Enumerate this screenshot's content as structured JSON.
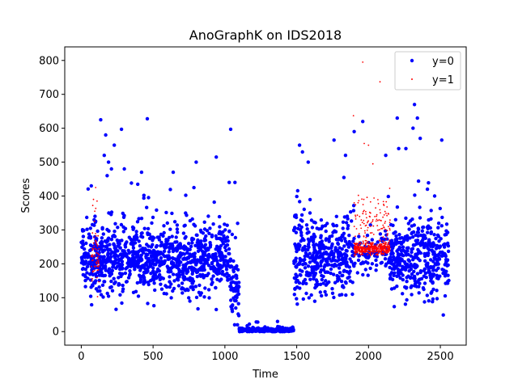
{
  "chart_data": {
    "type": "scatter",
    "title": "AnoGraphK on IDS2018",
    "xlabel": "Time",
    "ylabel": "Scores",
    "xlim": [
      -115,
      2680
    ],
    "ylim": [
      -40,
      840
    ],
    "xticks": [
      0,
      500,
      1000,
      1500,
      2000,
      2500
    ],
    "yticks": [
      0,
      100,
      200,
      300,
      400,
      500,
      600,
      700,
      800
    ],
    "legend_position": "top-right",
    "grid": false,
    "series": [
      {
        "name": "y=0",
        "color": "#0000ff",
        "marker": "large-dot",
        "segments": [
          {
            "x_start": 0,
            "x_end": 1040,
            "count": 1040,
            "median": 215,
            "spread": 70,
            "min": 50,
            "max": 450
          },
          {
            "x_start": 1040,
            "x_end": 1100,
            "count": 60,
            "median": 120,
            "spread": 70,
            "min": 20,
            "max": 350
          },
          {
            "x_start": 1100,
            "x_end": 1480,
            "count": 300,
            "median": 5,
            "spread": 4,
            "min": 0,
            "max": 30
          },
          {
            "x_start": 1480,
            "x_end": 1900,
            "count": 420,
            "median": 220,
            "spread": 80,
            "min": 50,
            "max": 480
          },
          {
            "x_start": 1900,
            "x_end": 2150,
            "count": 80,
            "median": 230,
            "spread": 40,
            "min": 100,
            "max": 420
          },
          {
            "x_start": 2150,
            "x_end": 2560,
            "count": 410,
            "median": 220,
            "spread": 80,
            "min": 45,
            "max": 460
          }
        ],
        "outliers": [
          {
            "x": 70,
            "y": 430
          },
          {
            "x": 135,
            "y": 625
          },
          {
            "x": 160,
            "y": 520
          },
          {
            "x": 170,
            "y": 580
          },
          {
            "x": 180,
            "y": 460
          },
          {
            "x": 190,
            "y": 500
          },
          {
            "x": 210,
            "y": 480
          },
          {
            "x": 230,
            "y": 550
          },
          {
            "x": 280,
            "y": 597
          },
          {
            "x": 300,
            "y": 480
          },
          {
            "x": 420,
            "y": 470
          },
          {
            "x": 460,
            "y": 628
          },
          {
            "x": 640,
            "y": 470
          },
          {
            "x": 800,
            "y": 500
          },
          {
            "x": 940,
            "y": 515
          },
          {
            "x": 1040,
            "y": 597
          },
          {
            "x": 1030,
            "y": 440
          },
          {
            "x": 1070,
            "y": 440
          },
          {
            "x": 1520,
            "y": 550
          },
          {
            "x": 1540,
            "y": 530
          },
          {
            "x": 1580,
            "y": 500
          },
          {
            "x": 1760,
            "y": 565
          },
          {
            "x": 1840,
            "y": 520
          },
          {
            "x": 1900,
            "y": 590
          },
          {
            "x": 1960,
            "y": 620
          },
          {
            "x": 2120,
            "y": 520
          },
          {
            "x": 2200,
            "y": 630
          },
          {
            "x": 2210,
            "y": 540
          },
          {
            "x": 2260,
            "y": 540
          },
          {
            "x": 2310,
            "y": 600
          },
          {
            "x": 2320,
            "y": 670
          },
          {
            "x": 2340,
            "y": 630
          },
          {
            "x": 2360,
            "y": 570
          },
          {
            "x": 2410,
            "y": 420
          },
          {
            "x": 2460,
            "y": 400
          },
          {
            "x": 2510,
            "y": 565
          }
        ]
      },
      {
        "name": "y=1",
        "color": "#ff0000",
        "marker": "small-dot",
        "segments": [
          {
            "x_start": 70,
            "x_end": 125,
            "count": 60,
            "median": 220,
            "spread": 70,
            "min": 100,
            "max": 430
          },
          {
            "x_start": 1900,
            "x_end": 2150,
            "count": 400,
            "median": 245,
            "spread": 12,
            "min": 220,
            "max": 270
          },
          {
            "x_start": 1900,
            "x_end": 2150,
            "count": 120,
            "median": 320,
            "spread": 60,
            "min": 260,
            "max": 460
          }
        ],
        "outliers": [
          {
            "x": 85,
            "y": 390
          },
          {
            "x": 100,
            "y": 425
          },
          {
            "x": 110,
            "y": 385
          },
          {
            "x": 1895,
            "y": 637
          },
          {
            "x": 1960,
            "y": 795
          },
          {
            "x": 2000,
            "y": 550
          },
          {
            "x": 2030,
            "y": 495
          },
          {
            "x": 2080,
            "y": 737
          },
          {
            "x": 1970,
            "y": 555
          }
        ]
      }
    ]
  }
}
